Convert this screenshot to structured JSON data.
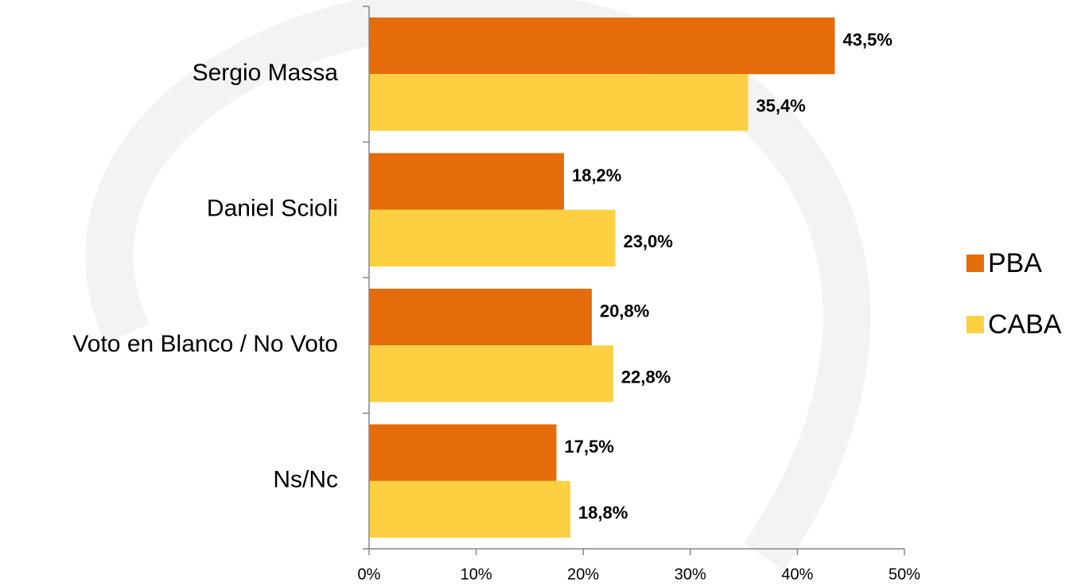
{
  "chart_data": {
    "type": "barh",
    "categories": [
      "Sergio Massa",
      "Daniel Scioli",
      "Voto en Blanco / No Voto",
      "Ns/Nc"
    ],
    "series": [
      {
        "name": "PBA",
        "color": "#e46c0a",
        "values": [
          43.5,
          18.2,
          20.8,
          17.5
        ],
        "value_labels": [
          "43,5%",
          "18,2%",
          "20,8%",
          "17,5%"
        ]
      },
      {
        "name": "CABA",
        "color": "#fdd041",
        "values": [
          35.4,
          23.0,
          22.8,
          18.8
        ],
        "value_labels": [
          "35,4%",
          "23,0%",
          "22,8%",
          "18,8%"
        ]
      }
    ],
    "xlim": [
      0,
      50
    ],
    "xticks": [
      {
        "value": 0,
        "label": "0%"
      },
      {
        "value": 10,
        "label": "10%"
      },
      {
        "value": 20,
        "label": "20%"
      },
      {
        "value": 30,
        "label": "30%"
      },
      {
        "value": 40,
        "label": "40%"
      },
      {
        "value": 50,
        "label": "50%"
      }
    ],
    "legend": "right"
  }
}
